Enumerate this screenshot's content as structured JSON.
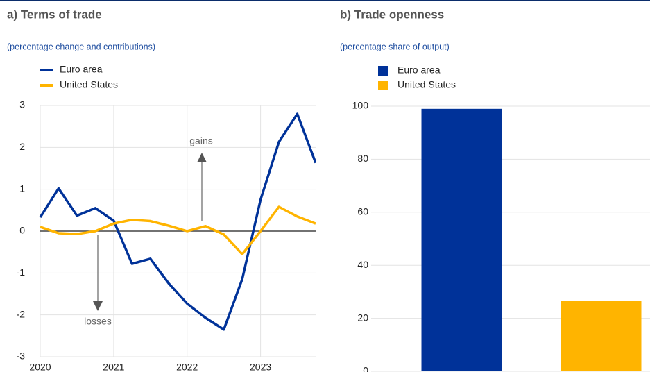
{
  "chart_data": [
    {
      "type": "line",
      "title": "a) Terms of trade",
      "subtitle": "(percentage change and contributions)",
      "x": [
        2020,
        2020.25,
        2020.5,
        2020.75,
        2021,
        2021.25,
        2021.5,
        2021.75,
        2022,
        2022.25,
        2022.5,
        2022.75,
        2023,
        2023.25,
        2023.5,
        2023.75
      ],
      "series": [
        {
          "name": "Euro area",
          "color": "#003299",
          "values": [
            0.33,
            1.02,
            0.37,
            0.55,
            0.25,
            -0.78,
            -0.66,
            -1.25,
            -1.73,
            -2.07,
            -2.35,
            -1.15,
            0.75,
            2.13,
            2.8,
            1.63
          ]
        },
        {
          "name": "United States",
          "color": "#ffb400",
          "values": [
            0.1,
            -0.05,
            -0.07,
            0.0,
            0.18,
            0.27,
            0.24,
            0.13,
            0.0,
            0.12,
            -0.08,
            -0.55,
            0.0,
            0.58,
            0.35,
            0.18
          ]
        }
      ],
      "xlim": [
        2020,
        2023.75
      ],
      "xticks": [
        2020,
        2021,
        2022,
        2023
      ],
      "ylim": [
        -3,
        3
      ],
      "yticks": [
        -3,
        -2,
        -1,
        0,
        1,
        2,
        3
      ],
      "grid": true,
      "annotations": [
        "gains",
        "losses"
      ]
    },
    {
      "type": "bar",
      "title": "b) Trade openness",
      "subtitle": "(percentage share of output)",
      "categories": [
        null,
        null
      ],
      "series": [
        {
          "name": "Euro area",
          "color": "#003299",
          "values": [
            99,
            null
          ]
        },
        {
          "name": "United States",
          "color": "#ffb400",
          "values": [
            null,
            26.5
          ]
        }
      ],
      "ylim": [
        0,
        100
      ],
      "yticks": [
        0,
        20,
        40,
        60,
        80,
        100
      ],
      "grid": true
    }
  ]
}
